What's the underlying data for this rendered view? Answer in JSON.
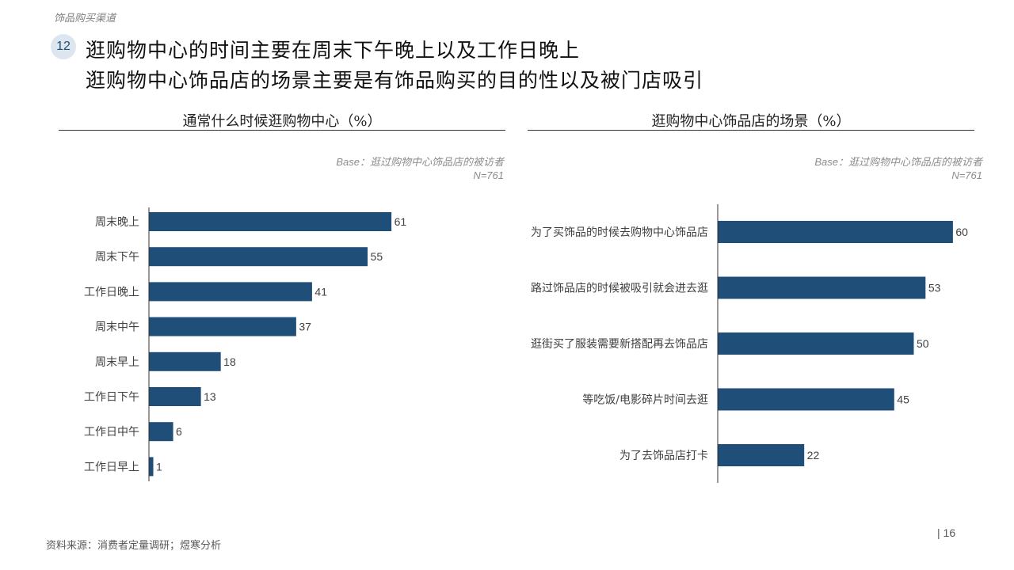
{
  "header": {
    "section": "饰品购买渠道",
    "number": "12",
    "headline_1": "逛购物中心的时间主要在周末下午晚上以及工作日晚上",
    "headline_2": "逛购物中心饰品店的场景主要是有饰品购买的目的性以及被门店吸引"
  },
  "colors": {
    "bar": "#1f4e79",
    "axis": "#333333",
    "badge_bg": "#dde5ee"
  },
  "chart_data": [
    {
      "type": "bar",
      "orientation": "horizontal",
      "title": "通常什么时候逛购物中心（%）",
      "base_note": "Base：逛过购物中心饰品店的被访者",
      "sample": "N=761",
      "categories": [
        "周末晚上",
        "周末下午",
        "工作日晚上",
        "周末中午",
        "周末早上",
        "工作日下午",
        "工作日中午",
        "工作日早上"
      ],
      "values": [
        61,
        55,
        41,
        37,
        18,
        13,
        6,
        1
      ],
      "xlim": [
        0,
        100
      ],
      "grid": false
    },
    {
      "type": "bar",
      "orientation": "horizontal",
      "title": "逛购物中心饰品店的场景（%）",
      "base_note": "Base：逛过购物中心饰品店的被访者",
      "sample": "N=761",
      "categories": [
        "为了买饰品的时候去购物中心饰品店",
        "路过饰品店的时候被吸引就会进去逛",
        "逛街买了服装需要新搭配再去饰品店",
        "等吃饭/电影碎片时间去逛",
        "为了去饰品店打卡"
      ],
      "values": [
        60,
        53,
        50,
        45,
        22
      ],
      "xlim": [
        0,
        100
      ],
      "grid": false
    }
  ],
  "footer": {
    "source": "资料来源：消费者定量调研；煜寒分析",
    "page_number": "| 16"
  }
}
